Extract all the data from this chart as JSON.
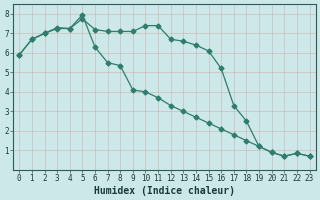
{
  "line1_x": [
    0,
    1,
    2,
    3,
    4,
    5,
    6,
    7,
    8,
    9,
    10,
    11,
    12,
    13,
    14,
    15,
    16,
    17,
    18,
    19,
    20,
    21,
    22,
    23
  ],
  "line1_y": [
    5.9,
    6.7,
    7.0,
    7.3,
    7.25,
    7.75,
    7.2,
    7.1,
    7.1,
    7.1,
    7.4,
    7.4,
    6.7,
    6.6,
    6.4,
    6.1,
    5.2,
    3.3,
    2.5,
    1.2,
    0.9,
    0.7,
    0.85,
    0.7
  ],
  "line2_x": [
    0,
    1,
    2,
    3,
    4,
    5,
    6,
    7,
    8,
    9,
    10,
    11,
    12,
    13,
    14,
    15,
    16,
    17,
    18,
    19,
    20,
    21,
    22,
    23
  ],
  "line2_y": [
    5.9,
    6.7,
    7.0,
    7.25,
    7.25,
    7.95,
    6.3,
    5.5,
    5.35,
    4.1,
    4.0,
    3.7,
    3.3,
    3.0,
    2.7,
    2.4,
    2.1,
    1.8,
    1.5,
    1.2,
    0.9,
    0.7,
    0.85,
    0.7
  ],
  "line_color": "#2e7d6d",
  "bg_color": "#cce8e8",
  "grid_color": "#b8d4d4",
  "xlabel": "Humidex (Indice chaleur)",
  "ylim": [
    0,
    8.5
  ],
  "xlim": [
    -0.5,
    23.5
  ],
  "yticks": [
    1,
    2,
    3,
    4,
    5,
    6,
    7,
    8
  ],
  "xticks": [
    0,
    1,
    2,
    3,
    4,
    5,
    6,
    7,
    8,
    9,
    10,
    11,
    12,
    13,
    14,
    15,
    16,
    17,
    18,
    19,
    20,
    21,
    22,
    23
  ],
  "tick_fontsize": 5.5,
  "xlabel_fontsize": 7.0
}
